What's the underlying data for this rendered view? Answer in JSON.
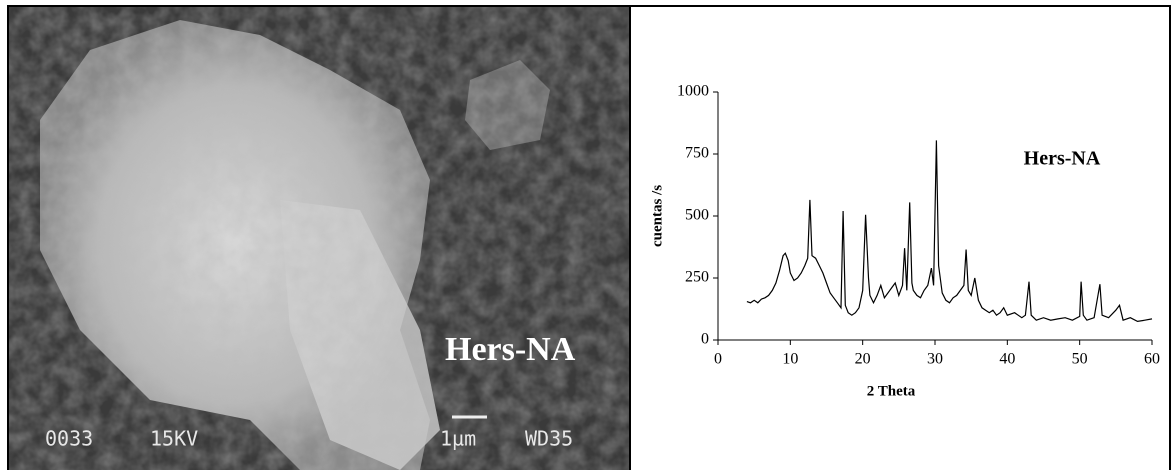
{
  "image": {
    "label": "Hers-NA",
    "info": [
      "0033",
      "15KV",
      "1µm",
      "WD35"
    ]
  },
  "chart_data": {
    "type": "line",
    "annotation": "Hers-NA",
    "xlabel": "2 Theta",
    "ylabel": "cuentas /s",
    "xlim": [
      0,
      60
    ],
    "ylim": [
      0,
      1000
    ],
    "xticks": [
      0,
      10,
      20,
      30,
      40,
      50,
      60
    ],
    "yticks": [
      0,
      250,
      500,
      750,
      1000
    ],
    "series": [
      {
        "color": "#000000",
        "x": [
          4,
          4.5,
          5,
          5.5,
          6,
          6.5,
          7,
          7.5,
          8,
          8.5,
          9,
          9.3,
          9.7,
          10,
          10.5,
          11,
          11.5,
          12,
          12.4,
          12.7,
          13,
          13.5,
          14,
          14.5,
          15,
          15.5,
          16,
          16.5,
          17,
          17.3,
          17.6,
          18,
          18.5,
          19,
          19.5,
          20,
          20.4,
          20.8,
          21,
          21.5,
          22,
          22.5,
          23,
          23.5,
          24,
          24.5,
          25,
          25.5,
          25.8,
          26.1,
          26.5,
          26.8,
          27,
          27.5,
          28,
          28.5,
          29,
          29.5,
          29.8,
          30.2,
          30.5,
          31,
          31.5,
          32,
          32.5,
          33,
          33.5,
          34,
          34.3,
          34.6,
          35,
          35.5,
          36,
          36.5,
          37,
          37.5,
          38,
          38.5,
          39,
          39.5,
          40,
          41,
          42,
          42.5,
          43,
          43.3,
          44,
          45,
          46,
          47,
          48,
          49,
          50,
          50.2,
          50.5,
          51,
          52,
          52.8,
          53.1,
          54,
          55,
          55.5,
          56,
          57,
          58,
          59,
          60
        ],
        "values": [
          155,
          150,
          160,
          150,
          165,
          170,
          180,
          200,
          230,
          280,
          340,
          350,
          320,
          270,
          240,
          250,
          270,
          300,
          330,
          565,
          340,
          330,
          300,
          270,
          230,
          190,
          170,
          150,
          130,
          520,
          140,
          110,
          100,
          110,
          130,
          200,
          505,
          250,
          180,
          150,
          180,
          220,
          170,
          190,
          210,
          230,
          180,
          220,
          370,
          200,
          555,
          230,
          200,
          180,
          170,
          200,
          220,
          290,
          220,
          805,
          300,
          190,
          160,
          150,
          170,
          180,
          200,
          220,
          365,
          200,
          180,
          250,
          160,
          130,
          120,
          110,
          120,
          100,
          110,
          130,
          100,
          110,
          90,
          100,
          235,
          100,
          80,
          90,
          80,
          85,
          90,
          80,
          95,
          235,
          100,
          80,
          90,
          225,
          100,
          90,
          120,
          140,
          80,
          90,
          75,
          80,
          85
        ]
      }
    ]
  }
}
